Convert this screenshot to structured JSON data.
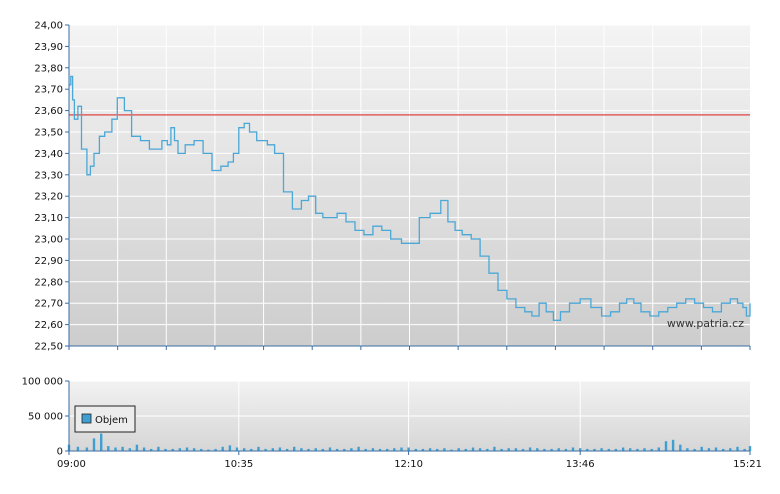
{
  "watermark": "www.patria.cz",
  "colors": {
    "price_line": "#4aa8d8",
    "reference_line": "#e06060",
    "volume_bar": "#3f9fd1",
    "axis": "#3a6ea5",
    "grid": "#ffffff",
    "plot_top": "#f4f4f4",
    "plot_bottom": "#cdcdcd"
  },
  "chart_data": [
    {
      "type": "line",
      "title": "",
      "ylim": [
        22.5,
        24.0
      ],
      "y_ticks": [
        "24,00",
        "23,90",
        "23,80",
        "23,70",
        "23,60",
        "23,50",
        "23,40",
        "23,30",
        "23,20",
        "23,10",
        "23,00",
        "22,90",
        "22,80",
        "22,70",
        "22,60",
        "22,50"
      ],
      "reference_line": 23.58,
      "grid": true,
      "series": [
        {
          "x": [
            "09:00",
            "09:01",
            "09:02",
            "09:03",
            "09:05",
            "09:07",
            "09:10",
            "09:12",
            "09:14",
            "09:17",
            "09:20",
            "09:24",
            "09:27",
            "09:31",
            "09:35",
            "09:40",
            "09:45",
            "09:49",
            "09:52",
            "09:55",
            "09:57",
            "09:59",
            "10:01",
            "10:05",
            "10:10",
            "10:15",
            "10:20",
            "10:25",
            "10:29",
            "10:32",
            "10:35",
            "10:38",
            "10:41",
            "10:45",
            "10:48",
            "10:51",
            "10:55",
            "11:00",
            "11:05",
            "11:10",
            "11:14",
            "11:18",
            "11:22",
            "11:26",
            "11:30",
            "11:35",
            "11:40",
            "11:45",
            "11:50",
            "11:55",
            "12:00",
            "12:06",
            "12:10",
            "12:16",
            "12:22",
            "12:28",
            "12:32",
            "12:36",
            "12:40",
            "12:45",
            "12:50",
            "12:55",
            "13:00",
            "13:05",
            "13:10",
            "13:15",
            "13:19",
            "13:23",
            "13:27",
            "13:31",
            "13:35",
            "13:40",
            "13:46",
            "13:52",
            "13:58",
            "14:03",
            "14:08",
            "14:12",
            "14:16",
            "14:20",
            "14:25",
            "14:30",
            "14:35",
            "14:40",
            "14:45",
            "14:50",
            "14:55",
            "15:00",
            "15:05",
            "15:10",
            "15:14",
            "15:17",
            "15:19",
            "15:21"
          ],
          "y": [
            23.72,
            23.76,
            23.65,
            23.56,
            23.62,
            23.42,
            23.3,
            23.34,
            23.4,
            23.48,
            23.5,
            23.56,
            23.66,
            23.6,
            23.48,
            23.46,
            23.42,
            23.42,
            23.46,
            23.44,
            23.52,
            23.46,
            23.4,
            23.44,
            23.46,
            23.4,
            23.32,
            23.34,
            23.36,
            23.4,
            23.52,
            23.54,
            23.5,
            23.46,
            23.46,
            23.44,
            23.4,
            23.22,
            23.14,
            23.18,
            23.2,
            23.12,
            23.1,
            23.1,
            23.12,
            23.08,
            23.04,
            23.02,
            23.06,
            23.04,
            23.0,
            22.98,
            22.98,
            23.1,
            23.12,
            23.18,
            23.08,
            23.04,
            23.02,
            23.0,
            22.92,
            22.84,
            22.76,
            22.72,
            22.68,
            22.66,
            22.64,
            22.7,
            22.66,
            22.62,
            22.66,
            22.7,
            22.72,
            22.68,
            22.64,
            22.66,
            22.7,
            22.72,
            22.7,
            22.66,
            22.64,
            22.66,
            22.68,
            22.7,
            22.72,
            22.7,
            22.68,
            22.66,
            22.7,
            22.72,
            22.7,
            22.68,
            22.64,
            22.7
          ],
          "color": "#4aa8d8"
        }
      ]
    },
    {
      "type": "bar",
      "title": "",
      "ylim": [
        0,
        100000
      ],
      "y_ticks": [
        "100 000",
        "50 000",
        "0"
      ],
      "x_ticks": [
        "09:00",
        "10:35",
        "12:10",
        "13:46",
        "15:21"
      ],
      "legend": {
        "label": "Objem",
        "placement": "top-left"
      },
      "grid": true,
      "series": [
        {
          "name": "Objem",
          "x": [
            "09:00",
            "09:05",
            "09:10",
            "09:14",
            "09:18",
            "09:22",
            "09:26",
            "09:30",
            "09:34",
            "09:38",
            "09:42",
            "09:46",
            "09:50",
            "09:54",
            "09:58",
            "10:02",
            "10:06",
            "10:10",
            "10:14",
            "10:18",
            "10:22",
            "10:26",
            "10:30",
            "10:34",
            "10:38",
            "10:42",
            "10:46",
            "10:50",
            "10:54",
            "10:58",
            "11:02",
            "11:06",
            "11:10",
            "11:14",
            "11:18",
            "11:22",
            "11:26",
            "11:30",
            "11:34",
            "11:38",
            "11:42",
            "11:46",
            "11:50",
            "11:54",
            "11:58",
            "12:02",
            "12:06",
            "12:10",
            "12:14",
            "12:18",
            "12:22",
            "12:26",
            "12:30",
            "12:34",
            "12:38",
            "12:42",
            "12:46",
            "12:50",
            "12:54",
            "12:58",
            "13:02",
            "13:06",
            "13:10",
            "13:14",
            "13:18",
            "13:22",
            "13:26",
            "13:30",
            "13:34",
            "13:38",
            "13:42",
            "13:46",
            "13:50",
            "13:54",
            "13:58",
            "14:02",
            "14:06",
            "14:10",
            "14:14",
            "14:18",
            "14:22",
            "14:26",
            "14:30",
            "14:34",
            "14:38",
            "14:42",
            "14:46",
            "14:50",
            "14:54",
            "14:58",
            "15:02",
            "15:06",
            "15:10",
            "15:14",
            "15:18",
            "15:21"
          ],
          "values": [
            9000,
            6000,
            5000,
            18000,
            25000,
            7000,
            5000,
            6000,
            4000,
            9000,
            5000,
            3000,
            6000,
            3000,
            3000,
            4000,
            5000,
            4000,
            3000,
            2000,
            3000,
            6000,
            8000,
            5000,
            4000,
            3000,
            6000,
            3000,
            4000,
            5000,
            3000,
            6000,
            4000,
            3000,
            4000,
            3000,
            5000,
            3000,
            3000,
            4000,
            6000,
            3000,
            4000,
            3000,
            3000,
            4000,
            5000,
            5000,
            3000,
            3000,
            4000,
            3000,
            4000,
            2000,
            4000,
            3000,
            5000,
            4000,
            3000,
            6000,
            3000,
            4000,
            4000,
            3000,
            5000,
            4000,
            3000,
            3000,
            4000,
            3000,
            5000,
            4000,
            3000,
            3000,
            4000,
            3000,
            3000,
            5000,
            4000,
            3000,
            4000,
            3000,
            5000,
            14000,
            16000,
            9000,
            4000,
            3000,
            6000,
            4000,
            5000,
            3000,
            4000,
            6000,
            3000,
            7000
          ]
        }
      ]
    }
  ]
}
